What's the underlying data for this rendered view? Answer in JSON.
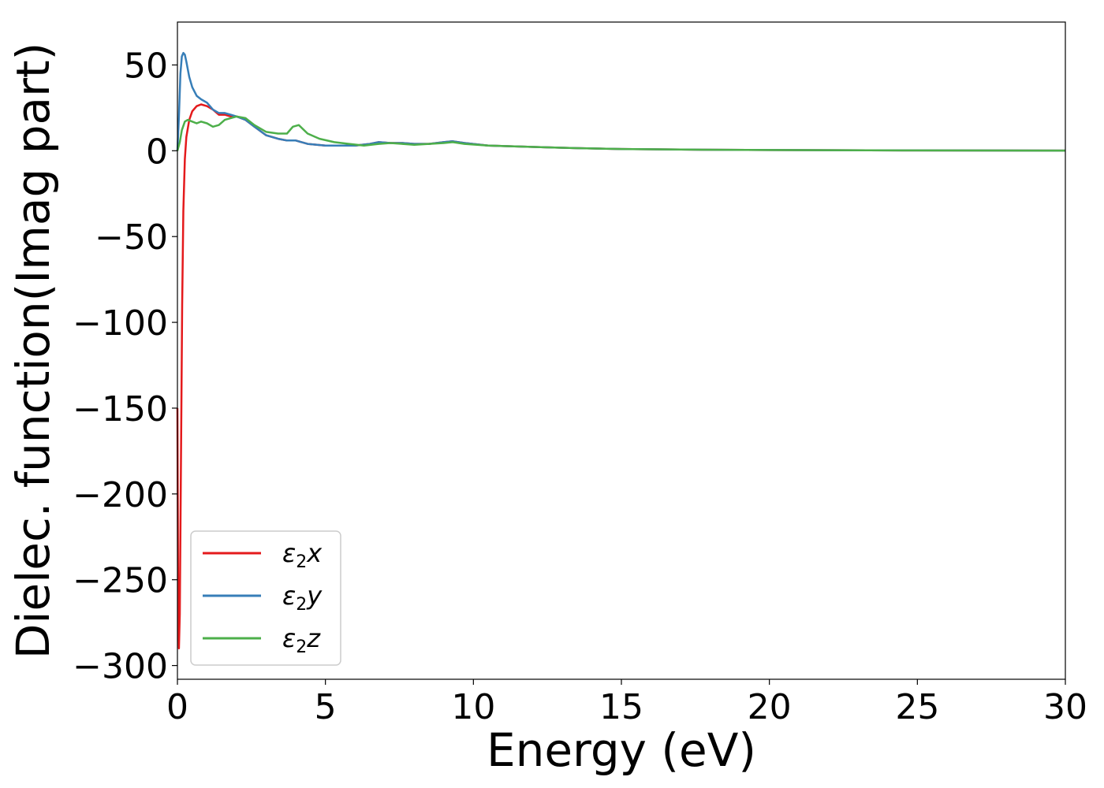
{
  "chart_data": {
    "type": "line",
    "title": "",
    "xlabel": "Energy (eV)",
    "ylabel": "Dielec. function(Imag part)",
    "xlim": [
      0,
      30
    ],
    "ylim": [
      -308,
      75
    ],
    "xticks": [
      0,
      5,
      10,
      15,
      20,
      25,
      30
    ],
    "xtick_labels": [
      "0",
      "5",
      "10",
      "15",
      "20",
      "25",
      "30"
    ],
    "yticks": [
      50,
      0,
      -50,
      -100,
      -150,
      -200,
      -250,
      -300
    ],
    "ytick_labels": [
      "50",
      "0",
      "−50",
      "−100",
      "−150",
      "−200",
      "−250",
      "−300"
    ],
    "grid": false,
    "legend_position": "lower-left",
    "series": [
      {
        "name": "x",
        "legend_base": "ε",
        "legend_sub": "2",
        "legend_var": "x",
        "color": "#e41a1c",
        "points": [
          [
            0,
            -150
          ],
          [
            0.02,
            -250
          ],
          [
            0.05,
            -290
          ],
          [
            0.08,
            -270
          ],
          [
            0.12,
            -180
          ],
          [
            0.16,
            -90
          ],
          [
            0.2,
            -35
          ],
          [
            0.25,
            -5
          ],
          [
            0.3,
            8
          ],
          [
            0.4,
            18
          ],
          [
            0.5,
            23
          ],
          [
            0.65,
            26
          ],
          [
            0.8,
            27
          ],
          [
            1.0,
            26
          ],
          [
            1.2,
            24
          ],
          [
            1.4,
            21
          ],
          [
            1.6,
            21
          ],
          [
            1.8,
            20
          ],
          [
            2.0,
            20
          ],
          [
            2.3,
            18
          ],
          [
            2.6,
            14
          ],
          [
            3.0,
            9
          ],
          [
            3.4,
            7
          ],
          [
            3.7,
            6
          ],
          [
            4.0,
            6
          ],
          [
            4.4,
            4
          ],
          [
            5.0,
            3
          ],
          [
            5.5,
            3
          ],
          [
            6.0,
            3
          ],
          [
            6.5,
            4
          ],
          [
            6.8,
            5
          ],
          [
            7.2,
            4.5
          ],
          [
            7.6,
            4.5
          ],
          [
            8.0,
            4
          ],
          [
            8.5,
            4
          ],
          [
            9.0,
            5
          ],
          [
            9.3,
            5.5
          ],
          [
            9.7,
            4.5
          ],
          [
            10.5,
            3
          ],
          [
            11.5,
            2.5
          ],
          [
            12.5,
            2
          ],
          [
            13.5,
            1.5
          ],
          [
            15,
            1
          ],
          [
            17,
            0.7
          ],
          [
            20,
            0.4
          ],
          [
            25,
            0.2
          ],
          [
            30,
            0.1
          ]
        ]
      },
      {
        "name": "y",
        "legend_base": "ε",
        "legend_sub": "2",
        "legend_var": "y",
        "color": "#377eb8",
        "points": [
          [
            0,
            0
          ],
          [
            0.05,
            20
          ],
          [
            0.1,
            45
          ],
          [
            0.15,
            55
          ],
          [
            0.2,
            57
          ],
          [
            0.25,
            56
          ],
          [
            0.3,
            52
          ],
          [
            0.4,
            43
          ],
          [
            0.5,
            37
          ],
          [
            0.65,
            32
          ],
          [
            0.8,
            30
          ],
          [
            1.0,
            28
          ],
          [
            1.2,
            24
          ],
          [
            1.4,
            22
          ],
          [
            1.6,
            22
          ],
          [
            1.8,
            21
          ],
          [
            2.0,
            20
          ],
          [
            2.3,
            18
          ],
          [
            2.6,
            14
          ],
          [
            3.0,
            9
          ],
          [
            3.4,
            7
          ],
          [
            3.7,
            6
          ],
          [
            4.0,
            6
          ],
          [
            4.4,
            4
          ],
          [
            5.0,
            3
          ],
          [
            5.5,
            3
          ],
          [
            6.0,
            3
          ],
          [
            6.5,
            4
          ],
          [
            6.8,
            5
          ],
          [
            7.2,
            4.5
          ],
          [
            7.6,
            4.5
          ],
          [
            8.0,
            4
          ],
          [
            8.5,
            4
          ],
          [
            9.0,
            5
          ],
          [
            9.3,
            5.5
          ],
          [
            9.7,
            4.5
          ],
          [
            10.5,
            3
          ],
          [
            11.5,
            2.5
          ],
          [
            12.5,
            2
          ],
          [
            13.5,
            1.5
          ],
          [
            15,
            1
          ],
          [
            17,
            0.7
          ],
          [
            20,
            0.4
          ],
          [
            25,
            0.2
          ],
          [
            30,
            0.1
          ]
        ]
      },
      {
        "name": "z",
        "legend_base": "ε",
        "legend_sub": "2",
        "legend_var": "z",
        "color": "#4daf4a",
        "points": [
          [
            0,
            0
          ],
          [
            0.08,
            5
          ],
          [
            0.15,
            12
          ],
          [
            0.25,
            17
          ],
          [
            0.35,
            18
          ],
          [
            0.5,
            17
          ],
          [
            0.65,
            16
          ],
          [
            0.8,
            17
          ],
          [
            1.0,
            16
          ],
          [
            1.2,
            14
          ],
          [
            1.4,
            15
          ],
          [
            1.6,
            18
          ],
          [
            1.8,
            19
          ],
          [
            2.0,
            20
          ],
          [
            2.3,
            19
          ],
          [
            2.6,
            15
          ],
          [
            3.0,
            11
          ],
          [
            3.4,
            10
          ],
          [
            3.7,
            10
          ],
          [
            3.9,
            14
          ],
          [
            4.1,
            15
          ],
          [
            4.4,
            10
          ],
          [
            4.8,
            7
          ],
          [
            5.3,
            5
          ],
          [
            5.8,
            4
          ],
          [
            6.3,
            3
          ],
          [
            6.8,
            4
          ],
          [
            7.2,
            4.5
          ],
          [
            7.6,
            4
          ],
          [
            8.0,
            3.5
          ],
          [
            8.5,
            4
          ],
          [
            9.0,
            4.5
          ],
          [
            9.3,
            5
          ],
          [
            9.7,
            4
          ],
          [
            10.5,
            3
          ],
          [
            11.5,
            2.5
          ],
          [
            12.5,
            2
          ],
          [
            13.5,
            1.5
          ],
          [
            15,
            1
          ],
          [
            17,
            0.7
          ],
          [
            20,
            0.4
          ],
          [
            25,
            0.2
          ],
          [
            30,
            0.1
          ]
        ]
      }
    ]
  }
}
